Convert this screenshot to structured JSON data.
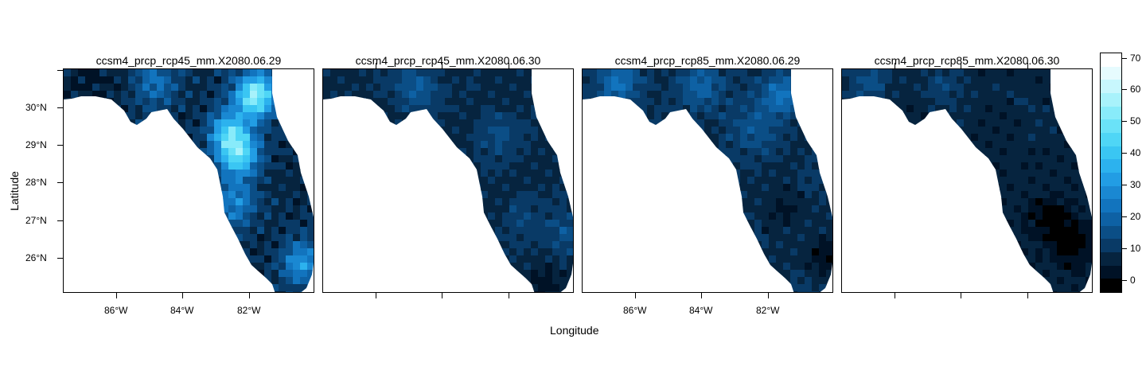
{
  "axes": {
    "xlabel": "Longitude",
    "ylabel": "Latitude"
  },
  "panels": [
    {
      "title": "ccsm4_prcp_rcp45_mm.X2080.06.29"
    },
    {
      "title": "ccsm4_prcp_rcp45_mm.X2080.06.30"
    },
    {
      "title": "ccsm4_prcp_rcp85_mm.X2080.06.29"
    },
    {
      "title": "ccsm4_prcp_rcp85_mm.X2080.06.30"
    }
  ],
  "ticks": {
    "y": [
      "30°N",
      "29°N",
      "28°N",
      "27°N",
      "26°N"
    ],
    "x": [
      "86°W",
      "84°W",
      "82°W"
    ]
  },
  "colorbar": {
    "labels": [
      "0",
      "10",
      "20",
      "30",
      "40",
      "50",
      "60",
      "70"
    ],
    "colors": [
      "#000000",
      "#001226",
      "#06243f",
      "#093a66",
      "#0b4e86",
      "#0e61a4",
      "#1274be",
      "#1a88d2",
      "#229de4",
      "#2cb2ee",
      "#3ac6f3",
      "#4fd6f6",
      "#6ae2f8",
      "#88ebfa",
      "#a8f2fb",
      "#c8f7fd",
      "#e6fbfe",
      "#ffffff"
    ]
  },
  "chart_data": {
    "type": "heatmap",
    "variable": "ccsm4_prcp (mm)",
    "region": "Florida",
    "xlim": [
      -87.6,
      -80.0
    ],
    "ylim": [
      25.0,
      31.0
    ],
    "color_scale": [
      -5,
      72
    ],
    "color_ticks": [
      0,
      10,
      20,
      30,
      40,
      50,
      60,
      70
    ],
    "panels": [
      {
        "title": "ccsm4_prcp_rcp45_mm.X2080.06.29",
        "base": 7,
        "level": 1.0,
        "hotspots": [
          {
            "lon": -81.8,
            "lat": 30.3,
            "value": 55
          },
          {
            "lon": -82.3,
            "lat": 28.7,
            "value": 42
          },
          {
            "lon": -82.6,
            "lat": 29.3,
            "value": 38
          },
          {
            "lon": -80.4,
            "lat": 25.8,
            "value": 30
          },
          {
            "lon": -82.4,
            "lat": 27.4,
            "value": 26
          },
          {
            "lon": -84.8,
            "lat": 30.6,
            "value": 22
          },
          {
            "lon": -86.8,
            "lat": 30.7,
            "value": 2
          },
          {
            "lon": -81.0,
            "lat": 28.1,
            "value": 6
          }
        ]
      },
      {
        "title": "ccsm4_prcp_rcp45_mm.X2080.06.30",
        "base": 7,
        "level": 0.5,
        "hotspots": [
          {
            "lon": -84.8,
            "lat": 30.5,
            "value": 18
          },
          {
            "lon": -82.3,
            "lat": 29.2,
            "value": 14
          },
          {
            "lon": -81.5,
            "lat": 27.0,
            "value": 12
          },
          {
            "lon": -80.3,
            "lat": 26.6,
            "value": 14
          },
          {
            "lon": -80.8,
            "lat": 25.3,
            "value": 1
          }
        ]
      },
      {
        "title": "ccsm4_prcp_rcp85_mm.X2080.06.29",
        "base": 8,
        "level": 0.6,
        "hotspots": [
          {
            "lon": -86.5,
            "lat": 30.6,
            "value": 22
          },
          {
            "lon": -84.0,
            "lat": 30.6,
            "value": 20
          },
          {
            "lon": -81.6,
            "lat": 30.3,
            "value": 22
          },
          {
            "lon": -82.4,
            "lat": 29.4,
            "value": 16
          },
          {
            "lon": -80.3,
            "lat": 26.0,
            "value": 0
          },
          {
            "lon": -81.5,
            "lat": 27.2,
            "value": 2
          }
        ]
      },
      {
        "title": "ccsm4_prcp_rcp85_mm.X2080.06.30",
        "base": 5,
        "level": 0.5,
        "hotspots": [
          {
            "lon": -86.8,
            "lat": 30.6,
            "value": 14
          },
          {
            "lon": -84.5,
            "lat": 30.5,
            "value": 12
          },
          {
            "lon": -82.0,
            "lat": 30.0,
            "value": 7
          },
          {
            "lon": -81.3,
            "lat": 27.0,
            "value": -4
          },
          {
            "lon": -80.6,
            "lat": 26.3,
            "value": -4
          }
        ]
      }
    ]
  }
}
